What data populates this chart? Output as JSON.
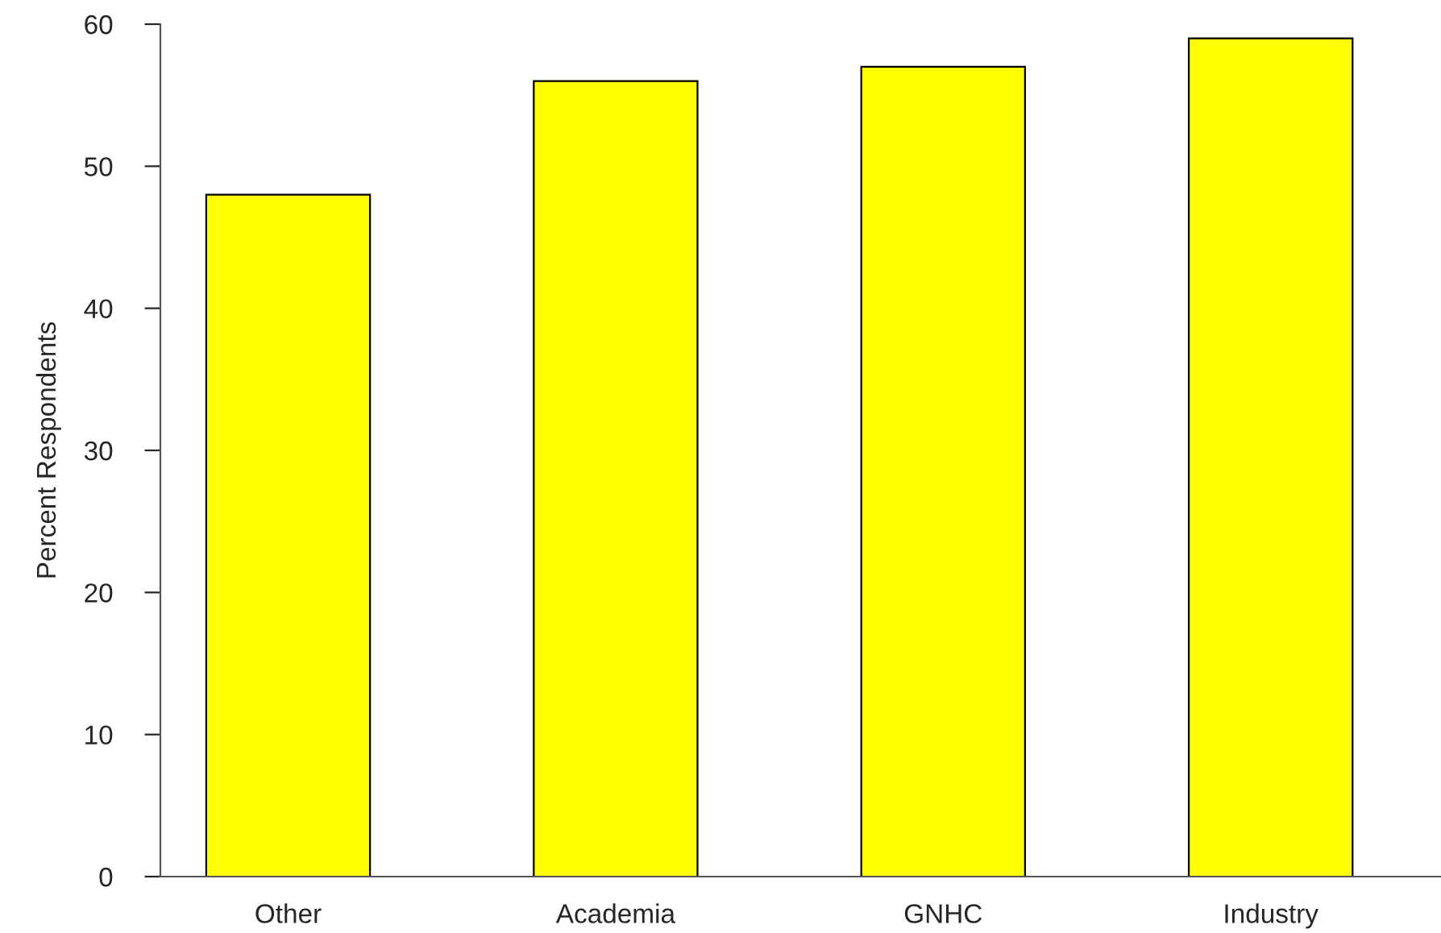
{
  "chart_data": {
    "type": "bar",
    "ylabel": "Percent Respondents",
    "categories": [
      "Other",
      "Academia",
      "GNHC",
      "Industry"
    ],
    "values": [
      48,
      56,
      57,
      59
    ],
    "color": "#ffff00",
    "ylim": [
      0,
      60
    ],
    "yticks": [
      0,
      10,
      20,
      30,
      40,
      50,
      60
    ],
    "grid": false,
    "legend": false
  }
}
